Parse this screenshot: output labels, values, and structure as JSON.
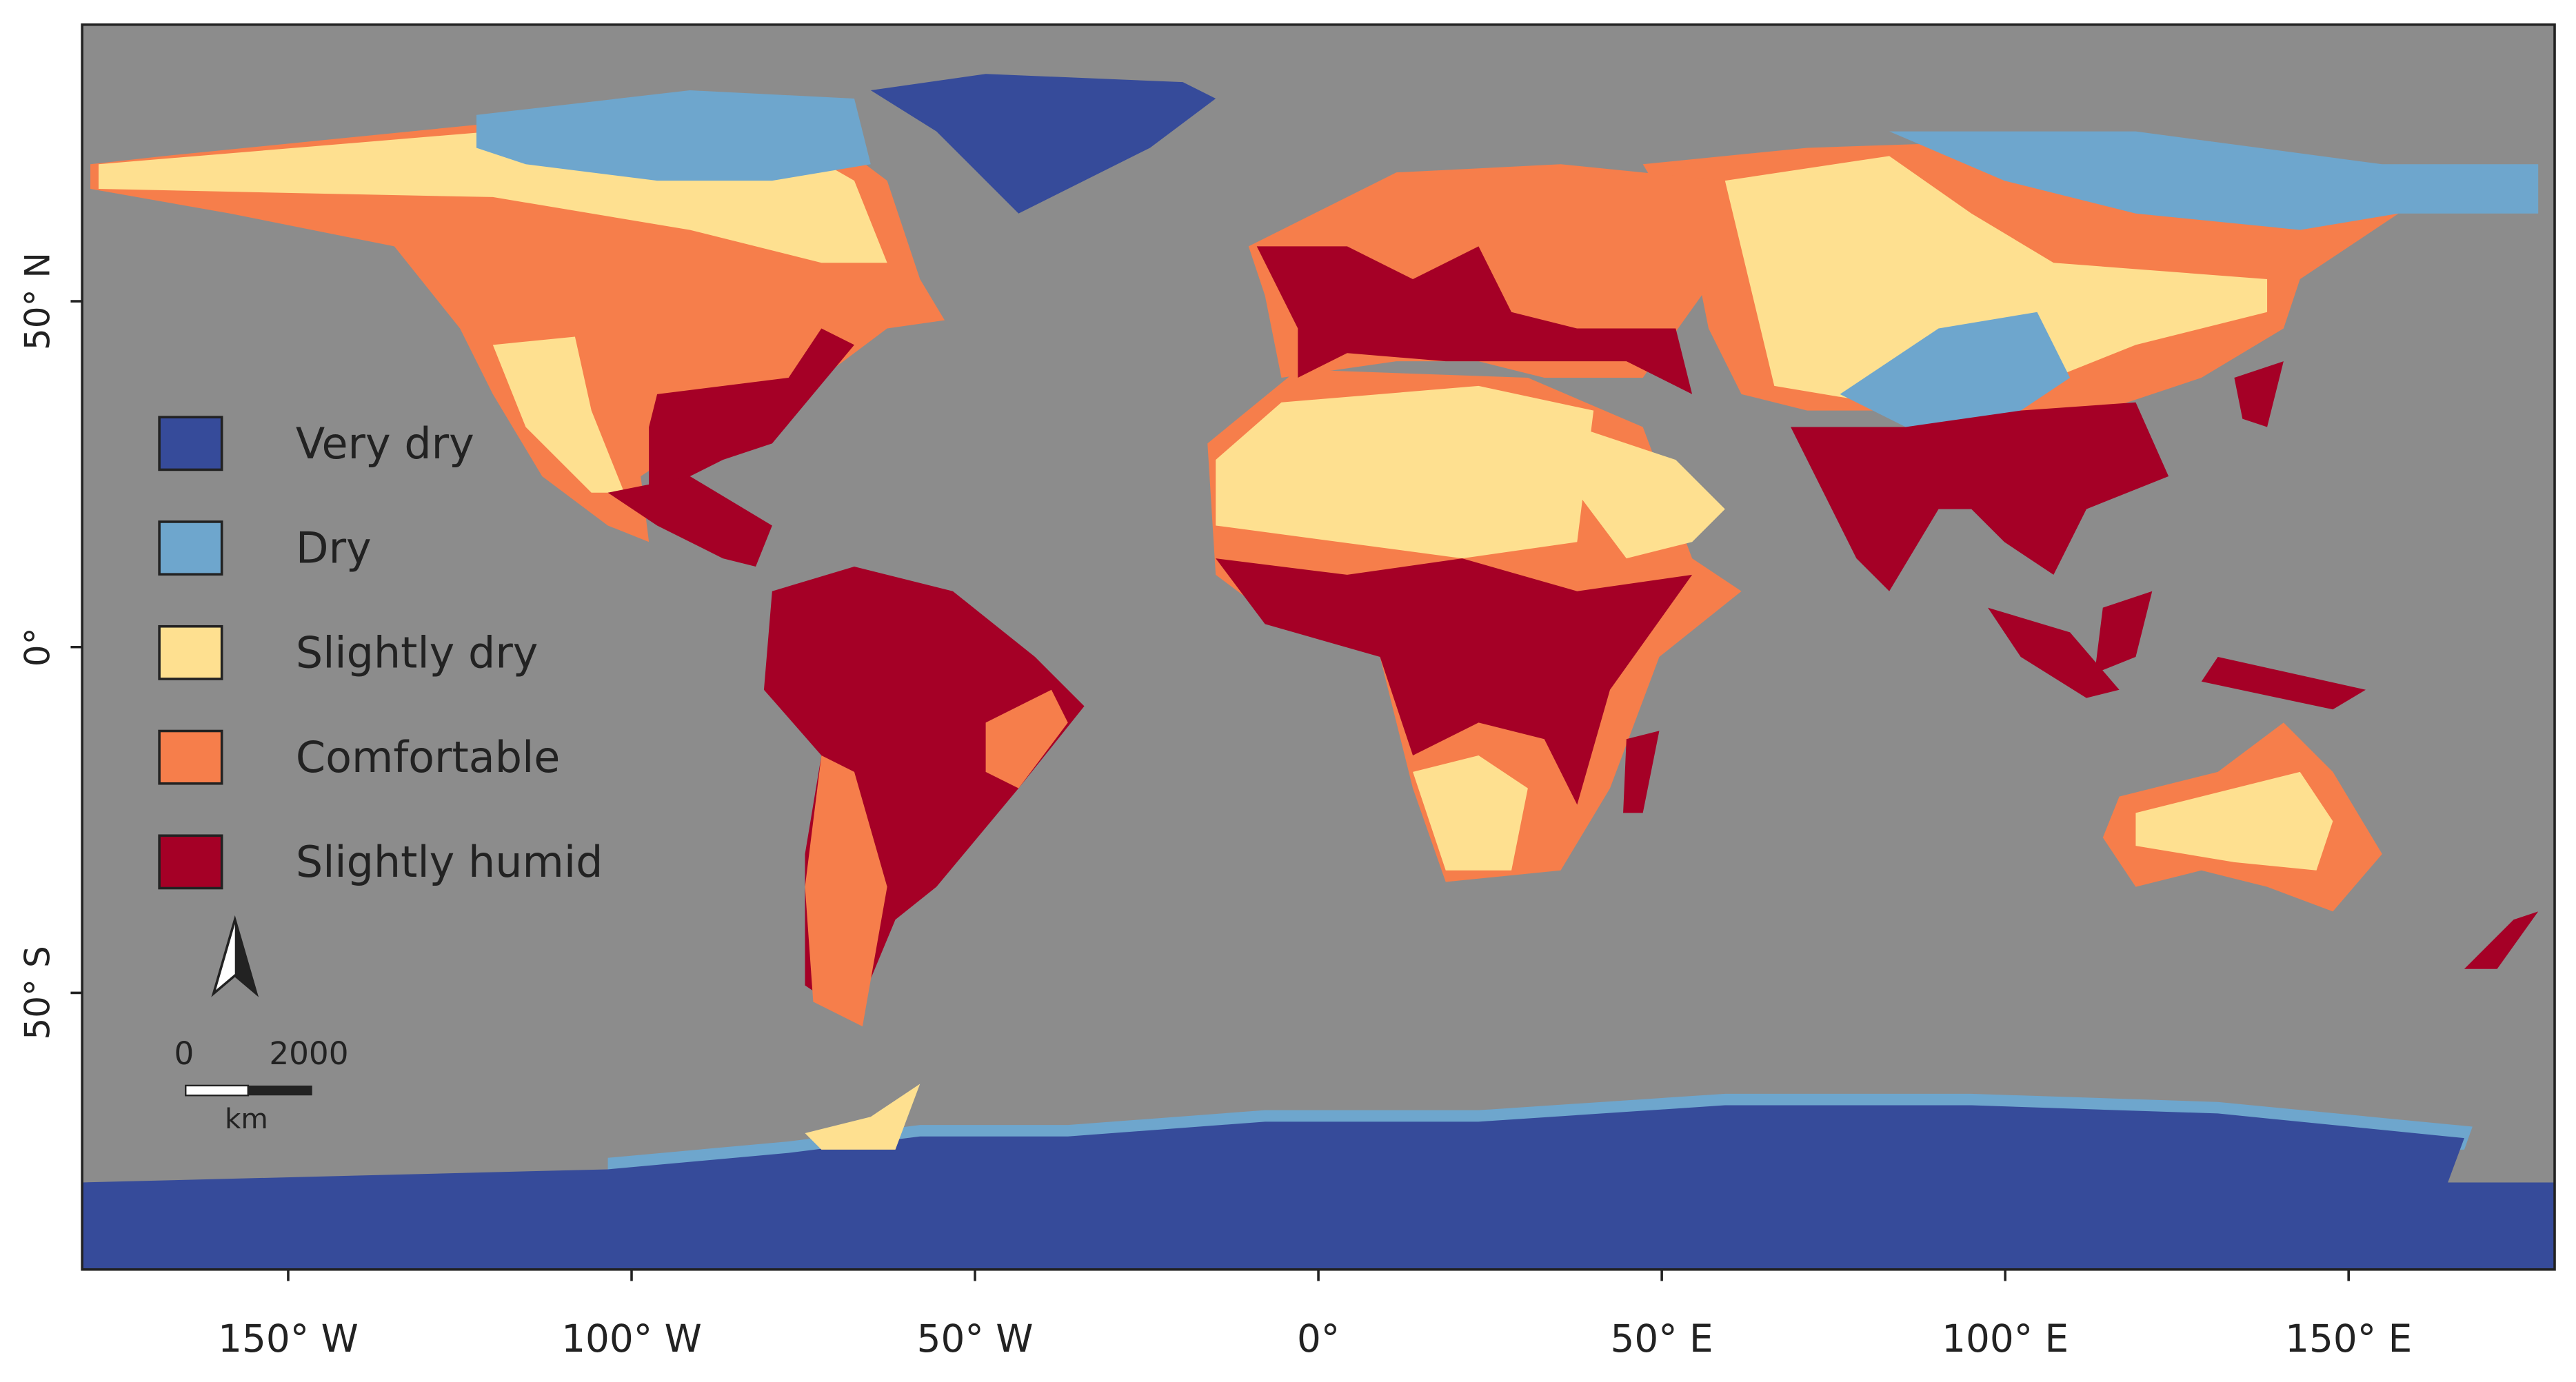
{
  "map": {
    "xlim": [
      -180,
      180
    ],
    "ylim": [
      -90,
      90
    ],
    "xticks": [
      {
        "value": -150,
        "label": "150° W"
      },
      {
        "value": -100,
        "label": "100° W"
      },
      {
        "value": -50,
        "label": "50° W"
      },
      {
        "value": 0,
        "label": "0°"
      },
      {
        "value": 50,
        "label": "50° E"
      },
      {
        "value": 100,
        "label": "100° E"
      },
      {
        "value": 150,
        "label": "150° E"
      }
    ],
    "yticks": [
      {
        "value": 50,
        "label": "50° N"
      },
      {
        "value": 0,
        "label": "0°"
      },
      {
        "value": -50,
        "label": "50° S"
      }
    ],
    "legend": [
      {
        "label": "Very dry",
        "color": "#364b9a"
      },
      {
        "label": "Dry",
        "color": "#6ea6cd"
      },
      {
        "label": "Slightly dry",
        "color": "#fee090"
      },
      {
        "label": "Comfortable",
        "color": "#f67e4b"
      },
      {
        "label": "Slightly humid",
        "color": "#a50026"
      }
    ],
    "scale_bar": {
      "labels": [
        "0",
        "2000"
      ],
      "unit": "km"
    }
  }
}
